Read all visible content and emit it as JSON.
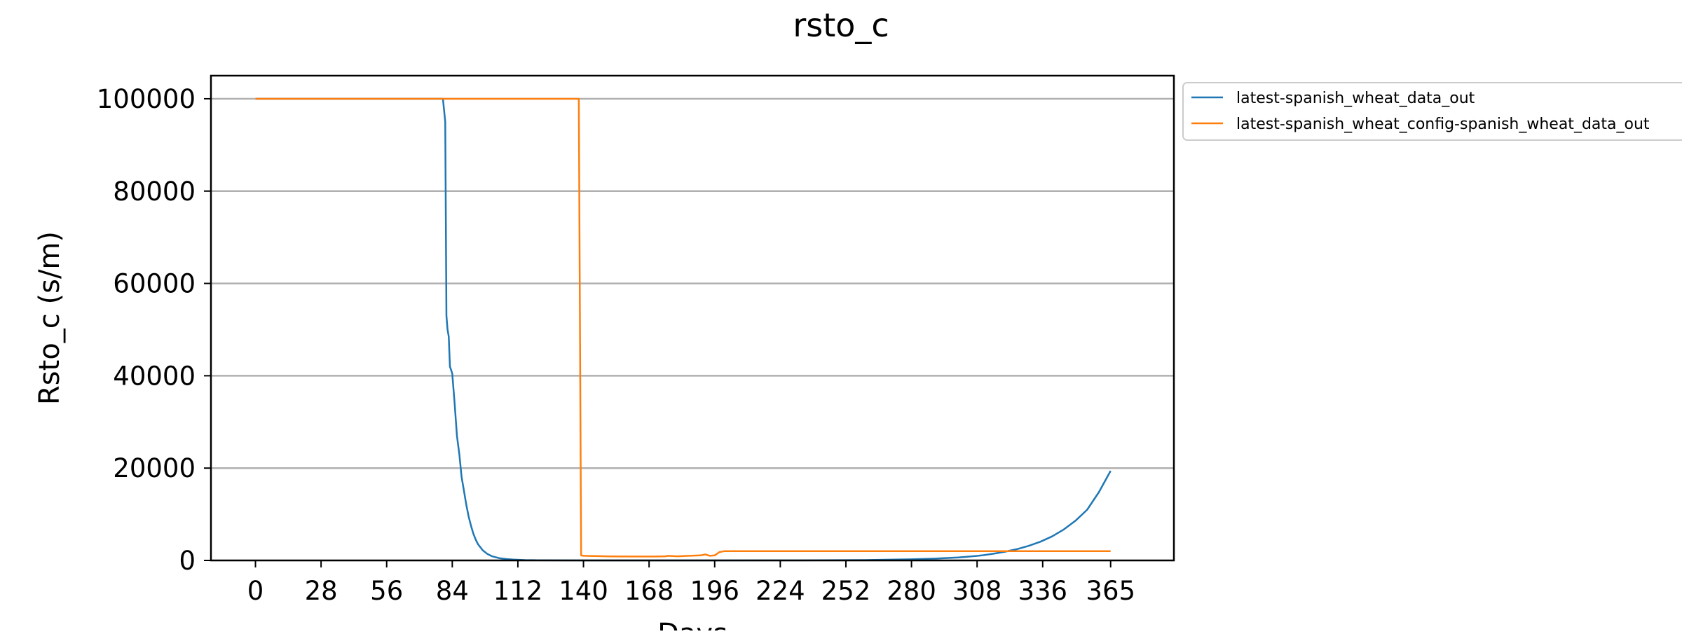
{
  "chart_data": {
    "type": "line",
    "title": "rsto_c",
    "xlabel": "Days",
    "ylabel": "Rsto_c (s/m)",
    "xlim": [
      -19,
      392
    ],
    "ylim": [
      0,
      105000
    ],
    "xticks": [
      0,
      28,
      56,
      84,
      112,
      140,
      168,
      196,
      224,
      252,
      280,
      308,
      336,
      365
    ],
    "yticks": [
      0,
      20000,
      40000,
      60000,
      80000,
      100000
    ],
    "grid": "horizontal",
    "legend_position": "outside-top-right",
    "series": [
      {
        "name": "latest-spanish_wheat_data_out",
        "color": "#1f77b4",
        "x": [
          0,
          80,
          81,
          81.5,
          82,
          82.5,
          83,
          84,
          85,
          86,
          87,
          88,
          89,
          90,
          91,
          92,
          93,
          94,
          95,
          97,
          99,
          101,
          104,
          107,
          110,
          115,
          120,
          130,
          140,
          160,
          180,
          200,
          220,
          240,
          260,
          280,
          290,
          300,
          305,
          310,
          315,
          320,
          325,
          330,
          335,
          340,
          345,
          350,
          355,
          360,
          365
        ],
        "y": [
          100000,
          100000,
          95000,
          53000,
          50000,
          48500,
          42000,
          40500,
          34000,
          27000,
          23000,
          18000,
          15000,
          12000,
          9500,
          7500,
          5800,
          4500,
          3500,
          2200,
          1400,
          900,
          500,
          300,
          180,
          80,
          40,
          15,
          0,
          0,
          0,
          0,
          10,
          30,
          80,
          250,
          400,
          650,
          850,
          1100,
          1450,
          1900,
          2450,
          3150,
          4050,
          5200,
          6700,
          8600,
          11000,
          14800,
          19400
        ]
      },
      {
        "name": "latest-spanish_wheat_config-spanish_wheat_data_out",
        "color": "#ff7f0e",
        "x": [
          0,
          138,
          139,
          140,
          150,
          160,
          170,
          175,
          176,
          180,
          185,
          190,
          192,
          194,
          196,
          198,
          200,
          250,
          300,
          365
        ],
        "y": [
          100000,
          100000,
          1100,
          1000,
          900,
          850,
          850,
          900,
          1000,
          900,
          1000,
          1100,
          1300,
          1000,
          1100,
          1800,
          2000,
          2000,
          2000,
          2000
        ]
      }
    ]
  }
}
